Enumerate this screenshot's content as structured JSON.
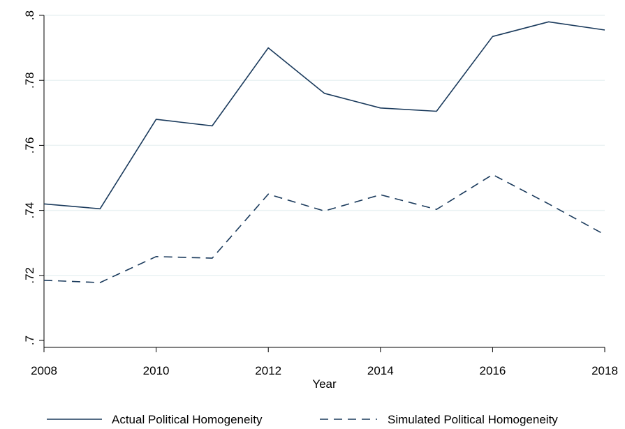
{
  "chart_data": {
    "type": "line",
    "xlabel": "Year",
    "ylabel": "",
    "x": [
      2008,
      2009,
      2010,
      2011,
      2012,
      2013,
      2014,
      2015,
      2016,
      2017,
      2018
    ],
    "xlim": [
      2008,
      2018
    ],
    "ylim": [
      0.7,
      0.8
    ],
    "xticks": [
      2008,
      2010,
      2012,
      2014,
      2016,
      2018
    ],
    "xtick_labels": [
      "2008",
      "2010",
      "2012",
      "2014",
      "2016",
      "2018"
    ],
    "yticks": [
      0.7,
      0.72,
      0.74,
      0.76,
      0.78,
      0.8
    ],
    "ytick_labels": [
      ".7",
      ".72",
      ".74",
      ".76",
      ".78",
      ".8"
    ],
    "grid": true,
    "legend_position": "bottom",
    "series": [
      {
        "name": "Actual Political Homogeneity",
        "style": "solid",
        "color": "#1a3a5c",
        "values": [
          0.742,
          0.7405,
          0.768,
          0.766,
          0.79,
          0.776,
          0.7715,
          0.7705,
          0.7935,
          0.798,
          0.7955
        ]
      },
      {
        "name": "Simulated Political Homogeneity",
        "style": "dashed",
        "color": "#1a3a5c",
        "values": [
          0.7185,
          0.7178,
          0.7258,
          0.7253,
          0.745,
          0.7398,
          0.7448,
          0.7403,
          0.751,
          0.742,
          0.7325
        ]
      }
    ]
  }
}
